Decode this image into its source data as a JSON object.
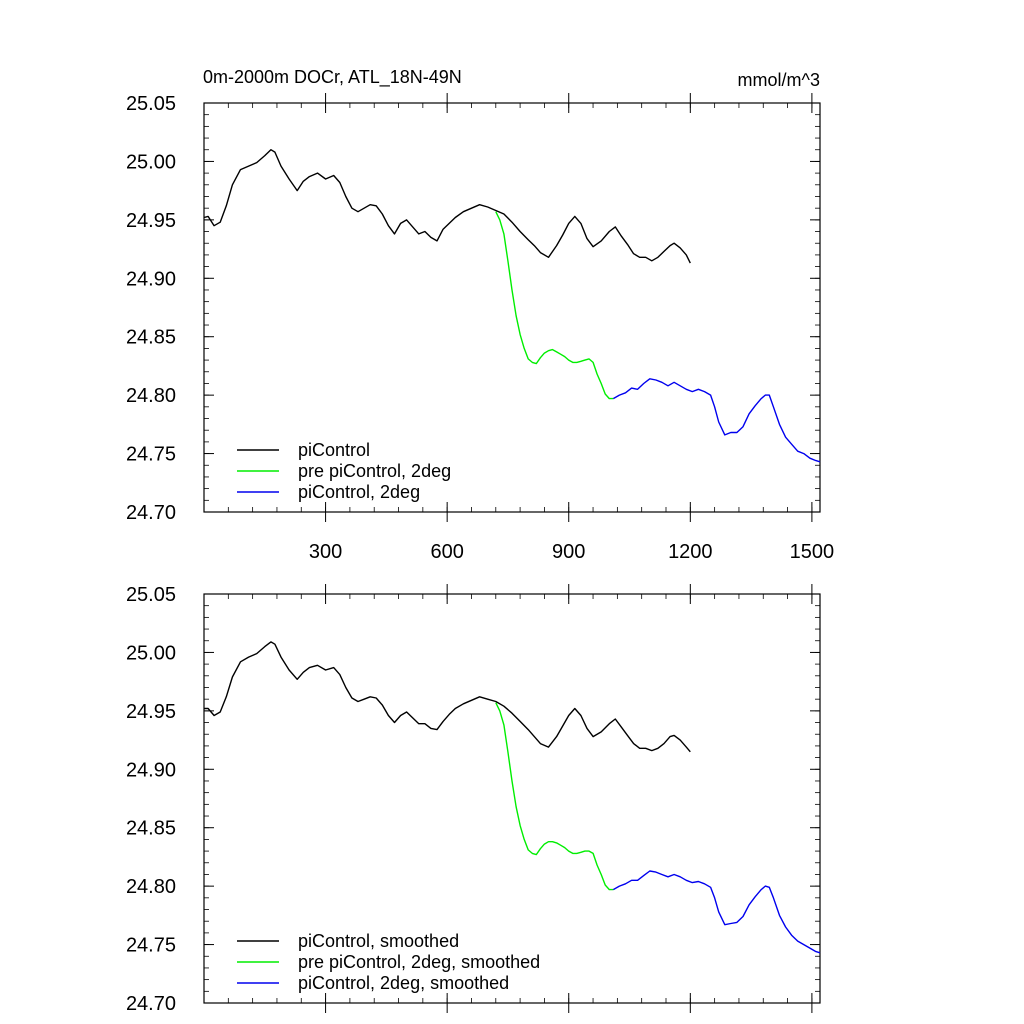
{
  "chart_data": [
    {
      "type": "line",
      "title": "0m-2000m DOCr, ATL_18N-49N",
      "units": "mmol/m^3",
      "xlim": [
        0,
        1520
      ],
      "ylim": [
        24.7,
        25.05
      ],
      "x_ticks": [
        300,
        600,
        900,
        1200,
        1500
      ],
      "x_tick_labels": [
        "300",
        "600",
        "900",
        "1200",
        "1500"
      ],
      "y_ticks": [
        24.7,
        24.75,
        24.8,
        24.85,
        24.9,
        24.95,
        25.0,
        25.05
      ],
      "y_tick_labels": [
        "24.70",
        "24.75",
        "24.80",
        "24.85",
        "24.90",
        "24.95",
        "25.00",
        "25.05"
      ],
      "legend": "bottom-left",
      "series": [
        {
          "name": "piControl",
          "color": "#000000",
          "x": [
            0,
            10,
            25,
            40,
            55,
            70,
            90,
            110,
            130,
            150,
            165,
            175,
            190,
            210,
            230,
            245,
            260,
            280,
            300,
            320,
            335,
            350,
            365,
            380,
            395,
            410,
            425,
            440,
            455,
            470,
            485,
            500,
            515,
            530,
            545,
            560,
            575,
            590,
            605,
            620,
            640,
            660,
            680,
            700,
            720,
            740,
            760,
            780,
            800,
            815,
            830,
            850,
            870,
            885,
            900,
            915,
            930,
            945,
            960,
            980,
            1000,
            1015,
            1030,
            1045,
            1060,
            1075,
            1090,
            1105,
            1120,
            1135,
            1150,
            1160,
            1175,
            1190,
            1200
          ],
          "y": [
            24.952,
            24.953,
            24.945,
            24.948,
            24.962,
            24.98,
            24.993,
            24.996,
            24.999,
            25.005,
            25.01,
            25.008,
            24.996,
            24.985,
            24.975,
            24.983,
            24.987,
            24.99,
            24.985,
            24.988,
            24.982,
            24.97,
            24.96,
            24.957,
            24.96,
            24.963,
            24.962,
            24.955,
            24.945,
            24.938,
            24.947,
            24.95,
            24.944,
            24.938,
            24.94,
            24.935,
            24.932,
            24.942,
            24.947,
            24.952,
            24.957,
            24.96,
            24.963,
            24.961,
            24.958,
            24.955,
            24.948,
            24.94,
            24.933,
            24.928,
            24.922,
            24.918,
            24.928,
            24.937,
            24.947,
            24.953,
            24.947,
            24.934,
            24.927,
            24.932,
            24.94,
            24.944,
            24.936,
            24.929,
            24.921,
            24.918,
            24.918,
            24.915,
            24.918,
            24.923,
            24.928,
            24.93,
            24.926,
            24.92,
            24.913
          ]
        },
        {
          "name": "pre piControl, 2deg",
          "color": "#00ee00",
          "x": [
            720,
            730,
            740,
            750,
            760,
            770,
            780,
            790,
            800,
            810,
            820,
            830,
            840,
            850,
            860,
            870,
            880,
            890,
            900,
            910,
            920,
            930,
            940,
            950,
            960,
            970,
            980,
            990,
            1000,
            1010
          ],
          "y": [
            24.957,
            24.95,
            24.938,
            24.915,
            24.89,
            24.868,
            24.852,
            24.84,
            24.831,
            24.828,
            24.827,
            24.832,
            24.836,
            24.838,
            24.839,
            24.837,
            24.835,
            24.833,
            24.83,
            24.828,
            24.828,
            24.829,
            24.83,
            24.831,
            24.828,
            24.818,
            24.81,
            24.801,
            24.797,
            24.797
          ]
        },
        {
          "name": "piControl, 2deg",
          "color": "#0000ee",
          "x": [
            1010,
            1025,
            1040,
            1055,
            1070,
            1085,
            1100,
            1115,
            1130,
            1145,
            1160,
            1175,
            1190,
            1205,
            1220,
            1235,
            1250,
            1260,
            1270,
            1285,
            1300,
            1315,
            1330,
            1345,
            1360,
            1375,
            1385,
            1395,
            1405,
            1420,
            1435,
            1450,
            1465,
            1480,
            1495,
            1510,
            1520
          ],
          "y": [
            24.797,
            24.8,
            24.802,
            24.806,
            24.805,
            24.81,
            24.814,
            24.813,
            24.811,
            24.808,
            24.811,
            24.808,
            24.805,
            24.803,
            24.805,
            24.803,
            24.8,
            24.79,
            24.777,
            24.766,
            24.768,
            24.768,
            24.773,
            24.784,
            24.791,
            24.797,
            24.8,
            24.8,
            24.79,
            24.775,
            24.764,
            24.758,
            24.752,
            24.75,
            24.746,
            24.744,
            24.743
          ]
        }
      ]
    },
    {
      "type": "line",
      "title": "",
      "xlim": [
        0,
        1520
      ],
      "ylim": [
        24.7,
        25.05
      ],
      "x_ticks": [
        300,
        600,
        900,
        1200,
        1500
      ],
      "y_ticks": [
        24.7,
        24.75,
        24.8,
        24.85,
        24.9,
        24.95,
        25.0,
        25.05
      ],
      "y_tick_labels": [
        "24.70",
        "24.75",
        "24.80",
        "24.85",
        "24.90",
        "24.95",
        "25.00",
        "25.05"
      ],
      "legend": "bottom-left",
      "series": [
        {
          "name": "piControl, smoothed",
          "color": "#000000",
          "x": [
            0,
            10,
            25,
            40,
            55,
            70,
            90,
            110,
            130,
            150,
            165,
            175,
            190,
            210,
            230,
            245,
            260,
            280,
            300,
            320,
            335,
            350,
            365,
            380,
            395,
            410,
            425,
            440,
            455,
            470,
            485,
            500,
            515,
            530,
            545,
            560,
            575,
            590,
            605,
            620,
            640,
            660,
            680,
            700,
            720,
            740,
            760,
            780,
            800,
            815,
            830,
            850,
            870,
            885,
            900,
            915,
            930,
            945,
            960,
            980,
            1000,
            1015,
            1030,
            1045,
            1060,
            1075,
            1090,
            1105,
            1120,
            1135,
            1150,
            1160,
            1175,
            1190,
            1200
          ],
          "y": [
            24.952,
            24.952,
            24.946,
            24.949,
            24.962,
            24.979,
            24.992,
            24.996,
            24.999,
            25.005,
            25.009,
            25.007,
            24.996,
            24.985,
            24.977,
            24.983,
            24.987,
            24.989,
            24.985,
            24.987,
            24.981,
            24.97,
            24.961,
            24.958,
            24.96,
            24.962,
            24.961,
            24.955,
            24.946,
            24.94,
            24.946,
            24.949,
            24.944,
            24.939,
            24.939,
            24.935,
            24.934,
            24.941,
            24.947,
            24.952,
            24.956,
            24.959,
            24.962,
            24.96,
            24.958,
            24.954,
            24.948,
            24.941,
            24.934,
            24.928,
            24.922,
            24.919,
            24.928,
            24.937,
            24.946,
            24.952,
            24.946,
            24.935,
            24.928,
            24.932,
            24.939,
            24.943,
            24.936,
            24.929,
            24.922,
            24.918,
            24.918,
            24.916,
            24.918,
            24.922,
            24.928,
            24.929,
            24.925,
            24.919,
            24.915
          ]
        },
        {
          "name": "pre piControl, 2deg, smoothed",
          "color": "#00ee00",
          "x": [
            720,
            730,
            740,
            750,
            760,
            770,
            780,
            790,
            800,
            810,
            820,
            830,
            840,
            850,
            860,
            870,
            880,
            890,
            900,
            910,
            920,
            930,
            940,
            950,
            960,
            970,
            980,
            990,
            1000,
            1010
          ],
          "y": [
            24.957,
            24.95,
            24.938,
            24.915,
            24.89,
            24.868,
            24.852,
            24.84,
            24.831,
            24.828,
            24.827,
            24.832,
            24.836,
            24.838,
            24.838,
            24.837,
            24.835,
            24.833,
            24.83,
            24.828,
            24.828,
            24.829,
            24.83,
            24.83,
            24.828,
            24.818,
            24.81,
            24.801,
            24.797,
            24.797
          ]
        },
        {
          "name": "piControl, 2deg, smoothed",
          "color": "#0000ee",
          "x": [
            1010,
            1025,
            1040,
            1055,
            1070,
            1085,
            1100,
            1115,
            1130,
            1145,
            1160,
            1175,
            1190,
            1205,
            1220,
            1235,
            1250,
            1260,
            1270,
            1285,
            1300,
            1315,
            1330,
            1345,
            1360,
            1375,
            1385,
            1395,
            1405,
            1420,
            1435,
            1450,
            1465,
            1480,
            1495,
            1510,
            1520
          ],
          "y": [
            24.797,
            24.8,
            24.802,
            24.805,
            24.805,
            24.809,
            24.813,
            24.812,
            24.81,
            24.808,
            24.81,
            24.808,
            24.805,
            24.803,
            24.804,
            24.802,
            24.799,
            24.79,
            24.778,
            24.767,
            24.768,
            24.769,
            24.774,
            24.784,
            24.791,
            24.797,
            24.8,
            24.799,
            24.79,
            24.775,
            24.765,
            24.758,
            24.753,
            24.75,
            24.747,
            24.744,
            24.743
          ]
        }
      ]
    }
  ]
}
